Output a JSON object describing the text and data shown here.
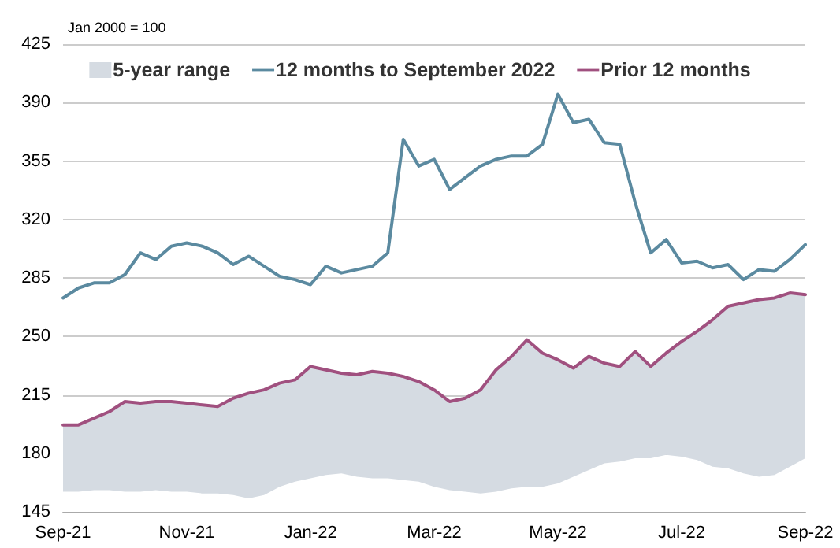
{
  "chart_data": {
    "type": "line",
    "subtitle": "Jan 2000 = 100",
    "categories": [
      "Sep-21",
      null,
      null,
      null,
      null,
      null,
      null,
      null,
      "Nov-21",
      null,
      null,
      null,
      null,
      null,
      null,
      null,
      "Jan-22",
      null,
      null,
      null,
      null,
      null,
      null,
      null,
      "Mar-22",
      null,
      null,
      null,
      null,
      null,
      null,
      null,
      "May-22",
      null,
      null,
      null,
      null,
      null,
      null,
      null,
      "Jul-22",
      null,
      null,
      null,
      null,
      null,
      null,
      null,
      "Sep-22"
    ],
    "series": [
      {
        "name": "5-year range",
        "type": "area",
        "color": "#d5dbe2",
        "lower": [
          157,
          157,
          158,
          158,
          157,
          157,
          158,
          157,
          157,
          156,
          156,
          155,
          153,
          155,
          160,
          163,
          165,
          167,
          168,
          166,
          165,
          165,
          164,
          163,
          160,
          158,
          157,
          156,
          157,
          159,
          160,
          160,
          162,
          166,
          170,
          174,
          175,
          177,
          177,
          179,
          178,
          176,
          172,
          171,
          168,
          166,
          167,
          172,
          177
        ],
        "upper": [
          197,
          197,
          201,
          205,
          211,
          210,
          211,
          211,
          210,
          209,
          208,
          213,
          216,
          218,
          222,
          224,
          232,
          230,
          228,
          227,
          229,
          228,
          226,
          223,
          218,
          211,
          213,
          218,
          230,
          238,
          248,
          240,
          236,
          231,
          238,
          234,
          232,
          241,
          232,
          240,
          247,
          253,
          260,
          268,
          270,
          272,
          273,
          276,
          275
        ],
        "values": [
          null,
          null,
          null,
          null,
          null,
          null,
          null,
          null,
          null,
          null,
          null,
          null,
          null,
          null,
          null,
          null,
          null,
          null,
          null,
          null,
          null,
          null,
          null,
          null,
          null,
          null,
          null,
          null,
          null,
          null,
          null,
          null,
          null,
          null,
          null,
          null,
          null,
          null,
          null,
          null,
          null,
          null,
          null,
          null,
          null,
          null,
          null,
          null,
          null
        ]
      },
      {
        "name": "12 months to September 2022",
        "color": "#5b8aa0",
        "values": [
          273,
          279,
          282,
          282,
          287,
          300,
          296,
          304,
          306,
          304,
          300,
          293,
          298,
          292,
          286,
          284,
          281,
          292,
          288,
          290,
          292,
          300,
          368,
          352,
          356,
          338,
          345,
          352,
          356,
          358,
          358,
          365,
          395,
          378,
          380,
          366,
          365,
          330,
          300,
          308,
          294,
          295,
          291,
          293,
          284,
          290,
          289,
          296,
          305
        ]
      },
      {
        "name": "Prior 12 months",
        "color": "#a0507f",
        "values": [
          197,
          197,
          201,
          205,
          211,
          210,
          211,
          211,
          210,
          209,
          208,
          213,
          216,
          218,
          222,
          224,
          232,
          230,
          228,
          227,
          229,
          228,
          226,
          223,
          218,
          211,
          213,
          218,
          230,
          238,
          248,
          240,
          236,
          231,
          238,
          234,
          232,
          241,
          232,
          240,
          247,
          253,
          260,
          268,
          270,
          272,
          273,
          276,
          275
        ]
      }
    ],
    "ylim": [
      145,
      425
    ],
    "yticks": [
      145,
      180,
      215,
      250,
      285,
      320,
      355,
      390,
      425
    ],
    "grid": "y",
    "legend": "top",
    "marker": "none",
    "line_style": "solid"
  }
}
